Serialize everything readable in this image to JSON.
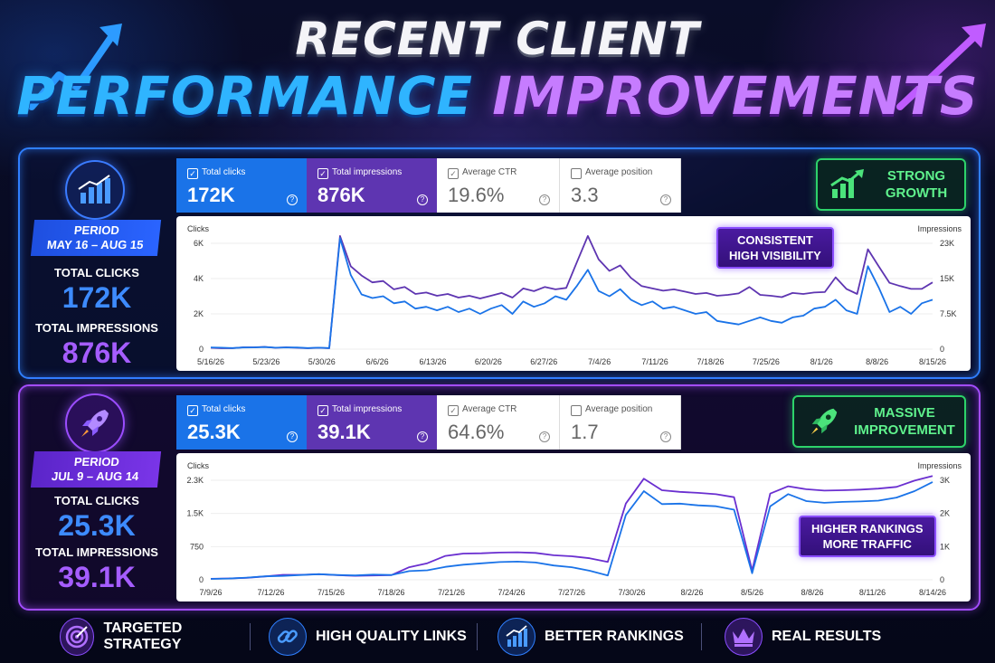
{
  "header": {
    "line1": "RECENT CLIENT",
    "line2_a": "PERFORMANCE",
    "line2_b": "IMPROVEMENTS"
  },
  "panel1": {
    "period_label": "PERIOD",
    "period_dates": "MAY 16 – AUG 15",
    "clicks_label": "TOTAL CLICKS",
    "clicks_value": "172K",
    "impressions_label": "TOTAL IMPRESSIONS",
    "impressions_value": "876K",
    "tabs": {
      "clicks_label": "Total clicks",
      "clicks_value": "172K",
      "impressions_label": "Total impressions",
      "impressions_value": "876K",
      "ctr_label": "Average CTR",
      "ctr_value": "19.6%",
      "position_label": "Average position",
      "position_value": "3.3"
    },
    "badge": [
      "STRONG",
      "GROWTH"
    ],
    "callout": [
      "CONSISTENT",
      "HIGH VISIBILITY"
    ],
    "colors": {
      "accent": "#2f7fff",
      "badge": "#2dd36a"
    }
  },
  "panel2": {
    "period_label": "PERIOD",
    "period_dates": "JUL 9 – AUG 14",
    "clicks_label": "TOTAL CLICKS",
    "clicks_value": "25.3K",
    "impressions_label": "TOTAL IMPRESSIONS",
    "impressions_value": "39.1K",
    "tabs": {
      "clicks_label": "Total clicks",
      "clicks_value": "25.3K",
      "impressions_label": "Total impressions",
      "impressions_value": "39.1K",
      "ctr_label": "Average CTR",
      "ctr_value": "64.6%",
      "position_label": "Average position",
      "position_value": "1.7"
    },
    "badge": [
      "MASSIVE",
      "IMPROVEMENT"
    ],
    "callout": [
      "HIGHER RANKINGS",
      "MORE TRAFFIC"
    ],
    "colors": {
      "accent": "#a34dff",
      "badge": "#2dd36a"
    }
  },
  "footer": {
    "items": [
      "TARGETED STRATEGY",
      "HIGH QUALITY LINKS",
      "BETTER RANKINGS",
      "REAL RESULTS"
    ]
  },
  "chart_data": [
    {
      "type": "line",
      "left_axis_label": "Clicks",
      "right_axis_label": "Impressions",
      "x_labels": [
        "5/16/26",
        "5/23/26",
        "5/30/26",
        "6/6/26",
        "6/13/26",
        "6/20/26",
        "6/27/26",
        "7/4/26",
        "7/11/26",
        "7/18/26",
        "7/25/26",
        "8/1/26",
        "8/8/26",
        "8/15/26"
      ],
      "y_left_ticks": [
        "0",
        "2K",
        "4K",
        "6K"
      ],
      "y_right_ticks": [
        "0",
        "7.5K",
        "15K",
        "23K"
      ],
      "ylim_left": [
        0,
        6000
      ],
      "series": [
        {
          "name": "Total clicks",
          "axis": "left",
          "color": "#1a73e8",
          "values": [
            100,
            80,
            60,
            90,
            100,
            120,
            80,
            100,
            90,
            60,
            80,
            60,
            6300,
            4200,
            3100,
            2900,
            3000,
            2600,
            2700,
            2300,
            2400,
            2200,
            2400,
            2100,
            2300,
            2000,
            2300,
            2500,
            2000,
            2700,
            2400,
            2600,
            3000,
            2800,
            3600,
            4500,
            3300,
            3000,
            3400,
            2800,
            2500,
            2700,
            2300,
            2400,
            2200,
            2000,
            2100,
            1600,
            1500,
            1400,
            1600,
            1800,
            1600,
            1500,
            1800,
            1900,
            2300,
            2400,
            2800,
            2200,
            2000,
            4700,
            3500,
            2100,
            2400,
            2000,
            2600,
            2800
          ]
        },
        {
          "name": "Total impressions",
          "axis": "right",
          "color": "#5e35b1",
          "values": [
            300,
            200,
            200,
            400,
            400,
            500,
            300,
            400,
            300,
            200,
            300,
            200,
            24600,
            18000,
            16000,
            14500,
            14800,
            13000,
            13500,
            12000,
            12300,
            11600,
            12000,
            11200,
            11600,
            11000,
            11600,
            12200,
            11200,
            13200,
            12600,
            13500,
            13000,
            13300,
            19000,
            24600,
            19500,
            17000,
            18200,
            15500,
            13700,
            13200,
            12700,
            13000,
            12500,
            12000,
            12200,
            11600,
            11800,
            12100,
            13500,
            11800,
            11600,
            11300,
            12200,
            12000,
            12300,
            12400,
            15600,
            13100,
            12000,
            21700,
            18000,
            14400,
            13700,
            13100,
            13100,
            14500
          ]
        }
      ]
    },
    {
      "type": "line",
      "left_axis_label": "Clicks",
      "right_axis_label": "Impressions",
      "x_labels": [
        "7/9/26",
        "7/12/26",
        "7/15/26",
        "7/18/26",
        "7/21/26",
        "7/24/26",
        "7/27/26",
        "7/30/26",
        "8/2/26",
        "8/5/26",
        "8/8/26",
        "8/11/26",
        "8/14/26"
      ],
      "y_left_ticks": [
        "0",
        "750",
        "1.5K",
        "2.3K"
      ],
      "y_right_ticks": [
        "0",
        "1K",
        "2K",
        "3K"
      ],
      "ylim_left": [
        0,
        2300
      ],
      "series": [
        {
          "name": "Total clicks",
          "axis": "left",
          "color": "#1a73e8",
          "values": [
            20,
            30,
            50,
            80,
            90,
            110,
            130,
            110,
            100,
            120,
            110,
            200,
            220,
            300,
            350,
            380,
            410,
            420,
            400,
            330,
            290,
            210,
            100,
            1500,
            2050,
            1750,
            1760,
            1720,
            1700,
            1620,
            150,
            1700,
            1980,
            1820,
            1780,
            1800,
            1810,
            1830,
            1900,
            2050,
            2260
          ]
        },
        {
          "name": "Total impressions",
          "axis": "right",
          "color": "#6a2fd0",
          "values": [
            30,
            40,
            60,
            100,
            150,
            150,
            170,
            140,
            120,
            130,
            140,
            380,
            500,
            720,
            790,
            800,
            820,
            830,
            810,
            740,
            710,
            650,
            540,
            2300,
            3050,
            2700,
            2650,
            2620,
            2580,
            2490,
            280,
            2600,
            2820,
            2730,
            2690,
            2700,
            2720,
            2750,
            2800,
            2990,
            3130
          ]
        }
      ]
    }
  ]
}
